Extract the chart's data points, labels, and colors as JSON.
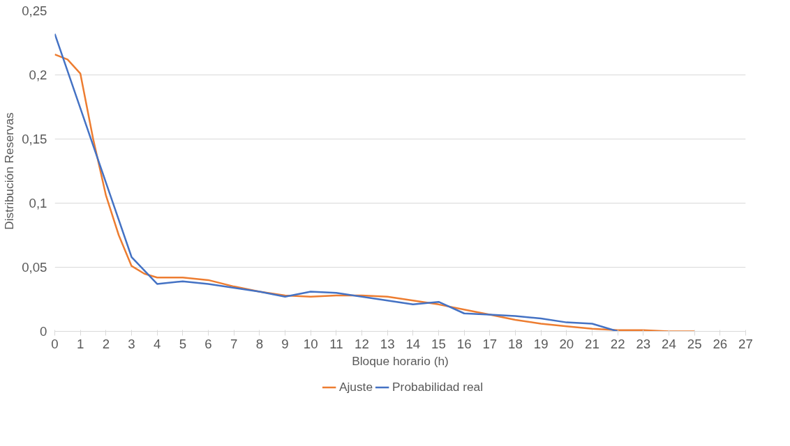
{
  "chart_data": {
    "type": "line",
    "xlabel": "Bloque horario (h)",
    "ylabel": "Distribución Reservas",
    "xlim": [
      0,
      27
    ],
    "xticks": [
      0,
      1,
      2,
      3,
      4,
      5,
      6,
      7,
      8,
      9,
      10,
      11,
      12,
      13,
      14,
      15,
      16,
      17,
      18,
      19,
      20,
      21,
      22,
      23,
      24,
      25,
      26,
      27
    ],
    "ylim": [
      0,
      0.25
    ],
    "yticks": [
      0,
      {
        "value": 0.05,
        "label": "0,05"
      },
      {
        "value": 0.1,
        "label": "0,1"
      },
      {
        "value": 0.15,
        "label": "0,15"
      },
      {
        "value": 0.2,
        "label": "0,2"
      },
      {
        "value": 0.25,
        "label": "0,25"
      }
    ],
    "grid": "y",
    "legend": "bottom",
    "marker": "none",
    "line_style": "solid",
    "series": [
      {
        "name": "Ajuste",
        "color": "#ed7d31",
        "x": [
          0,
          0.5,
          1,
          1.5,
          2,
          2.5,
          3,
          3.5,
          4,
          5,
          6,
          7,
          8,
          9,
          10,
          11,
          12,
          13,
          14,
          15,
          16,
          17,
          18,
          19,
          20,
          21,
          22,
          23,
          24,
          25
        ],
        "values": [
          0.216,
          0.212,
          0.201,
          0.15,
          0.106,
          0.075,
          0.051,
          0.045,
          0.042,
          0.042,
          0.04,
          0.035,
          0.031,
          0.028,
          0.027,
          0.028,
          0.028,
          0.027,
          0.024,
          0.021,
          0.017,
          0.013,
          0.009,
          0.006,
          0.004,
          0.002,
          0.001,
          0.001,
          0.0,
          0.0
        ]
      },
      {
        "name": "Probabilidad real",
        "color": "#4472c4",
        "x": [
          0,
          1,
          2,
          3,
          4,
          5,
          6,
          7,
          8,
          9,
          10,
          11,
          12,
          13,
          14,
          15,
          16,
          17,
          18,
          19,
          20,
          21,
          22
        ],
        "values": [
          0.232,
          0.174,
          0.116,
          0.058,
          0.037,
          0.039,
          0.037,
          0.034,
          0.031,
          0.027,
          0.031,
          0.03,
          0.027,
          0.024,
          0.021,
          0.023,
          0.014,
          0.013,
          0.012,
          0.01,
          0.007,
          0.006,
          0
        ]
      }
    ]
  }
}
